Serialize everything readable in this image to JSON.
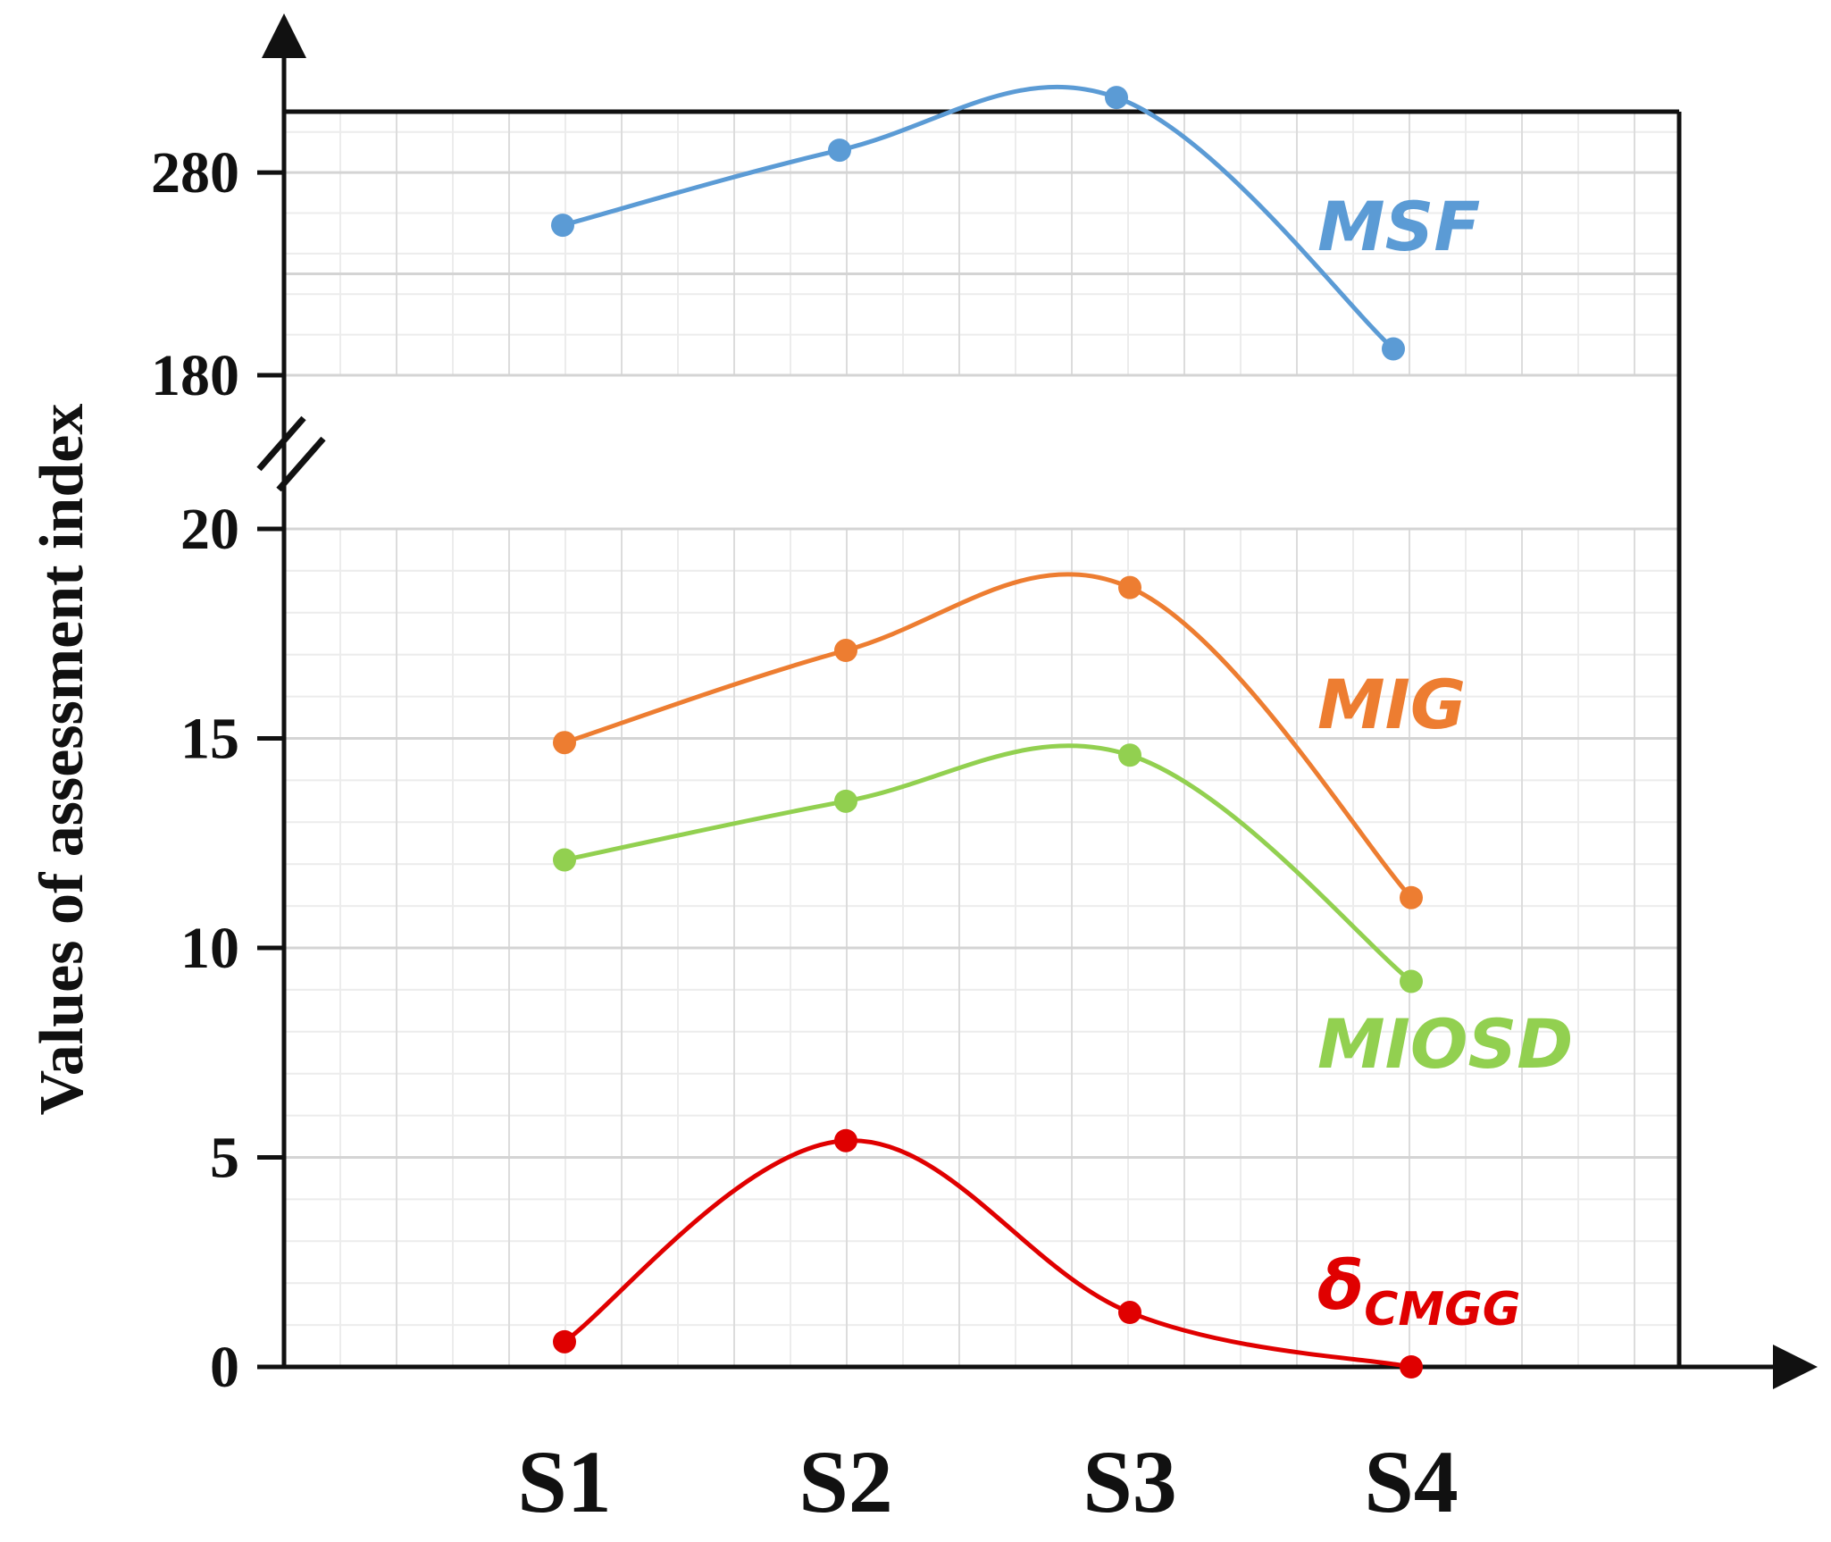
{
  "chart_data": {
    "type": "line",
    "title": "",
    "xlabel": "",
    "ylabel": "Values of assessment index",
    "categories": [
      "S1",
      "S2",
      "S3",
      "S4"
    ],
    "y_axis_break": true,
    "upper_panel": {
      "ylim": [
        180,
        310
      ],
      "yticks": [
        180,
        280
      ],
      "series": [
        {
          "name": "MSF",
          "color": "#5b9bd5",
          "values": [
            254,
            291,
            317,
            193
          ]
        }
      ]
    },
    "lower_panel": {
      "ylim": [
        0,
        20
      ],
      "yticks": [
        0,
        5,
        10,
        15,
        20
      ],
      "series": [
        {
          "name": "MIG",
          "color": "#ed7d31",
          "values": [
            14.9,
            17.1,
            18.6,
            11.2
          ]
        },
        {
          "name": "MIOSD",
          "color": "#92d050",
          "values": [
            12.1,
            13.5,
            14.6,
            9.2
          ]
        },
        {
          "name": "δ",
          "name_subscript": "CMGG",
          "color": "#e00000",
          "values": [
            0.6,
            5.4,
            1.3,
            0.0
          ]
        }
      ]
    },
    "grid": true,
    "legend": "inline labels at right of each line"
  }
}
